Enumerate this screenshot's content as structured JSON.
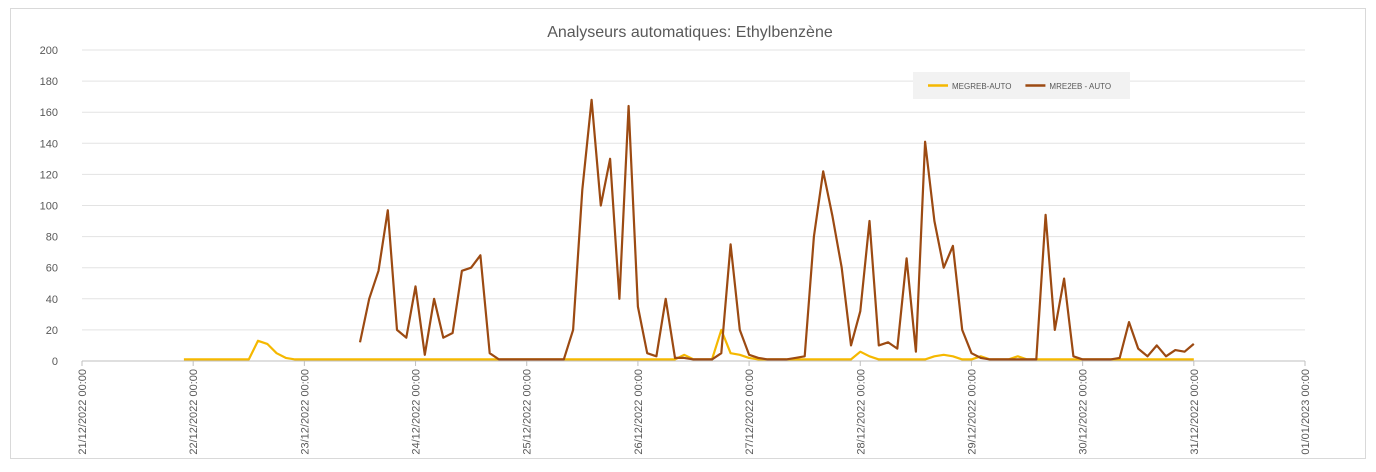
{
  "chart_data": {
    "type": "line",
    "title": "Analyseurs automatiques: Ethylbenzène",
    "x": [
      "21/12/2022 22:00",
      "22/12/2022 00:00",
      "22/12/2022 02:00",
      "22/12/2022 04:00",
      "22/12/2022 06:00",
      "22/12/2022 08:00",
      "22/12/2022 10:00",
      "22/12/2022 12:00",
      "22/12/2022 14:00",
      "22/12/2022 16:00",
      "22/12/2022 18:00",
      "22/12/2022 20:00",
      "22/12/2022 22:00",
      "23/12/2022 00:00",
      "23/12/2022 02:00",
      "23/12/2022 04:00",
      "23/12/2022 06:00",
      "23/12/2022 08:00",
      "23/12/2022 10:00",
      "23/12/2022 12:00",
      "23/12/2022 14:00",
      "23/12/2022 16:00",
      "23/12/2022 18:00",
      "23/12/2022 20:00",
      "23/12/2022 22:00",
      "24/12/2022 00:00",
      "24/12/2022 02:00",
      "24/12/2022 04:00",
      "24/12/2022 06:00",
      "24/12/2022 08:00",
      "24/12/2022 10:00",
      "24/12/2022 12:00",
      "24/12/2022 14:00",
      "24/12/2022 16:00",
      "24/12/2022 18:00",
      "24/12/2022 20:00",
      "24/12/2022 22:00",
      "25/12/2022 00:00",
      "25/12/2022 02:00",
      "25/12/2022 04:00",
      "25/12/2022 06:00",
      "25/12/2022 08:00",
      "25/12/2022 10:00",
      "25/12/2022 12:00",
      "25/12/2022 14:00",
      "25/12/2022 16:00",
      "25/12/2022 18:00",
      "25/12/2022 20:00",
      "25/12/2022 22:00",
      "26/12/2022 00:00",
      "26/12/2022 02:00",
      "26/12/2022 04:00",
      "26/12/2022 06:00",
      "26/12/2022 08:00",
      "26/12/2022 10:00",
      "26/12/2022 12:00",
      "26/12/2022 14:00",
      "26/12/2022 16:00",
      "26/12/2022 18:00",
      "26/12/2022 20:00",
      "26/12/2022 22:00",
      "27/12/2022 00:00",
      "27/12/2022 02:00",
      "27/12/2022 04:00",
      "27/12/2022 06:00",
      "27/12/2022 08:00",
      "27/12/2022 10:00",
      "27/12/2022 12:00",
      "27/12/2022 14:00",
      "27/12/2022 16:00",
      "27/12/2022 18:00",
      "27/12/2022 20:00",
      "27/12/2022 22:00",
      "28/12/2022 00:00",
      "28/12/2022 02:00",
      "28/12/2022 04:00",
      "28/12/2022 06:00",
      "28/12/2022 08:00",
      "28/12/2022 10:00",
      "28/12/2022 12:00",
      "28/12/2022 14:00",
      "28/12/2022 16:00",
      "28/12/2022 18:00",
      "28/12/2022 20:00",
      "28/12/2022 22:00",
      "29/12/2022 00:00",
      "29/12/2022 02:00",
      "29/12/2022 04:00",
      "29/12/2022 06:00",
      "29/12/2022 08:00",
      "29/12/2022 10:00",
      "29/12/2022 12:00",
      "29/12/2022 14:00",
      "29/12/2022 16:00",
      "29/12/2022 18:00",
      "29/12/2022 20:00",
      "29/12/2022 22:00",
      "30/12/2022 00:00",
      "30/12/2022 02:00",
      "30/12/2022 04:00",
      "30/12/2022 06:00",
      "30/12/2022 08:00",
      "30/12/2022 10:00",
      "30/12/2022 12:00",
      "30/12/2022 14:00",
      "30/12/2022 16:00",
      "30/12/2022 18:00",
      "30/12/2022 20:00",
      "30/12/2022 22:00",
      "31/12/2022 00:00"
    ],
    "series": [
      {
        "name": "MEGREB-AUTO",
        "color": "#f5b800",
        "values": [
          1,
          1,
          1,
          1,
          1,
          1,
          1,
          1,
          13,
          11,
          5,
          2,
          1,
          1,
          1,
          1,
          1,
          1,
          1,
          1,
          1,
          1,
          1,
          1,
          1,
          1,
          1,
          1,
          1,
          1,
          1,
          1,
          1,
          1,
          1,
          1,
          1,
          1,
          1,
          1,
          1,
          1,
          1,
          1,
          1,
          1,
          1,
          1,
          1,
          1,
          1,
          1,
          1,
          1,
          4,
          1,
          1,
          1,
          20,
          5,
          4,
          2,
          1,
          1,
          1,
          1,
          1,
          1,
          1,
          1,
          1,
          1,
          1,
          6,
          3,
          1,
          1,
          1,
          1,
          1,
          1,
          3,
          4,
          3,
          1,
          1,
          3,
          1,
          1,
          1,
          3,
          1,
          1,
          1,
          1,
          1,
          1,
          1,
          1,
          1,
          1,
          1,
          1,
          1,
          1,
          1,
          1,
          1,
          1,
          1
        ]
      },
      {
        "name": "MRE2EB - AUTO",
        "color": "#9c4a12",
        "values": [
          null,
          null,
          null,
          null,
          null,
          null,
          null,
          null,
          null,
          null,
          null,
          null,
          null,
          null,
          null,
          null,
          null,
          null,
          null,
          12,
          40,
          58,
          97,
          20,
          15,
          48,
          4,
          40,
          15,
          18,
          58,
          60,
          68,
          5,
          1,
          1,
          1,
          1,
          1,
          1,
          1,
          1,
          20,
          110,
          168,
          100,
          130,
          40,
          164,
          35,
          5,
          3,
          40,
          2,
          2,
          1,
          1,
          1,
          5,
          75,
          20,
          4,
          2,
          1,
          1,
          1,
          2,
          3,
          80,
          122,
          93,
          60,
          10,
          32,
          90,
          10,
          12,
          8,
          66,
          6,
          141,
          90,
          60,
          74,
          20,
          5,
          2,
          1,
          1,
          1,
          1,
          1,
          1,
          94,
          20,
          53,
          3,
          1,
          1,
          1,
          1,
          2,
          25,
          8,
          3,
          10,
          3,
          7,
          6,
          11
        ]
      }
    ],
    "xlim": [
      "21/12/2022 00:00",
      "01/01/2023 00:00"
    ],
    "xticks": [
      "21/12/2022 00:00",
      "22/12/2022 00:00",
      "23/12/2022 00:00",
      "24/12/2022 00:00",
      "25/12/2022 00:00",
      "26/12/2022 00:00",
      "27/12/2022 00:00",
      "28/12/2022 00:00",
      "29/12/2022 00:00",
      "30/12/2022 00:00",
      "31/12/2022 00:00",
      "01/01/2023 00:00"
    ],
    "ylim": [
      0,
      200
    ],
    "yticks": [
      0,
      20,
      40,
      60,
      80,
      100,
      120,
      140,
      160,
      180,
      200
    ],
    "grid": true,
    "legend": "top-right"
  }
}
